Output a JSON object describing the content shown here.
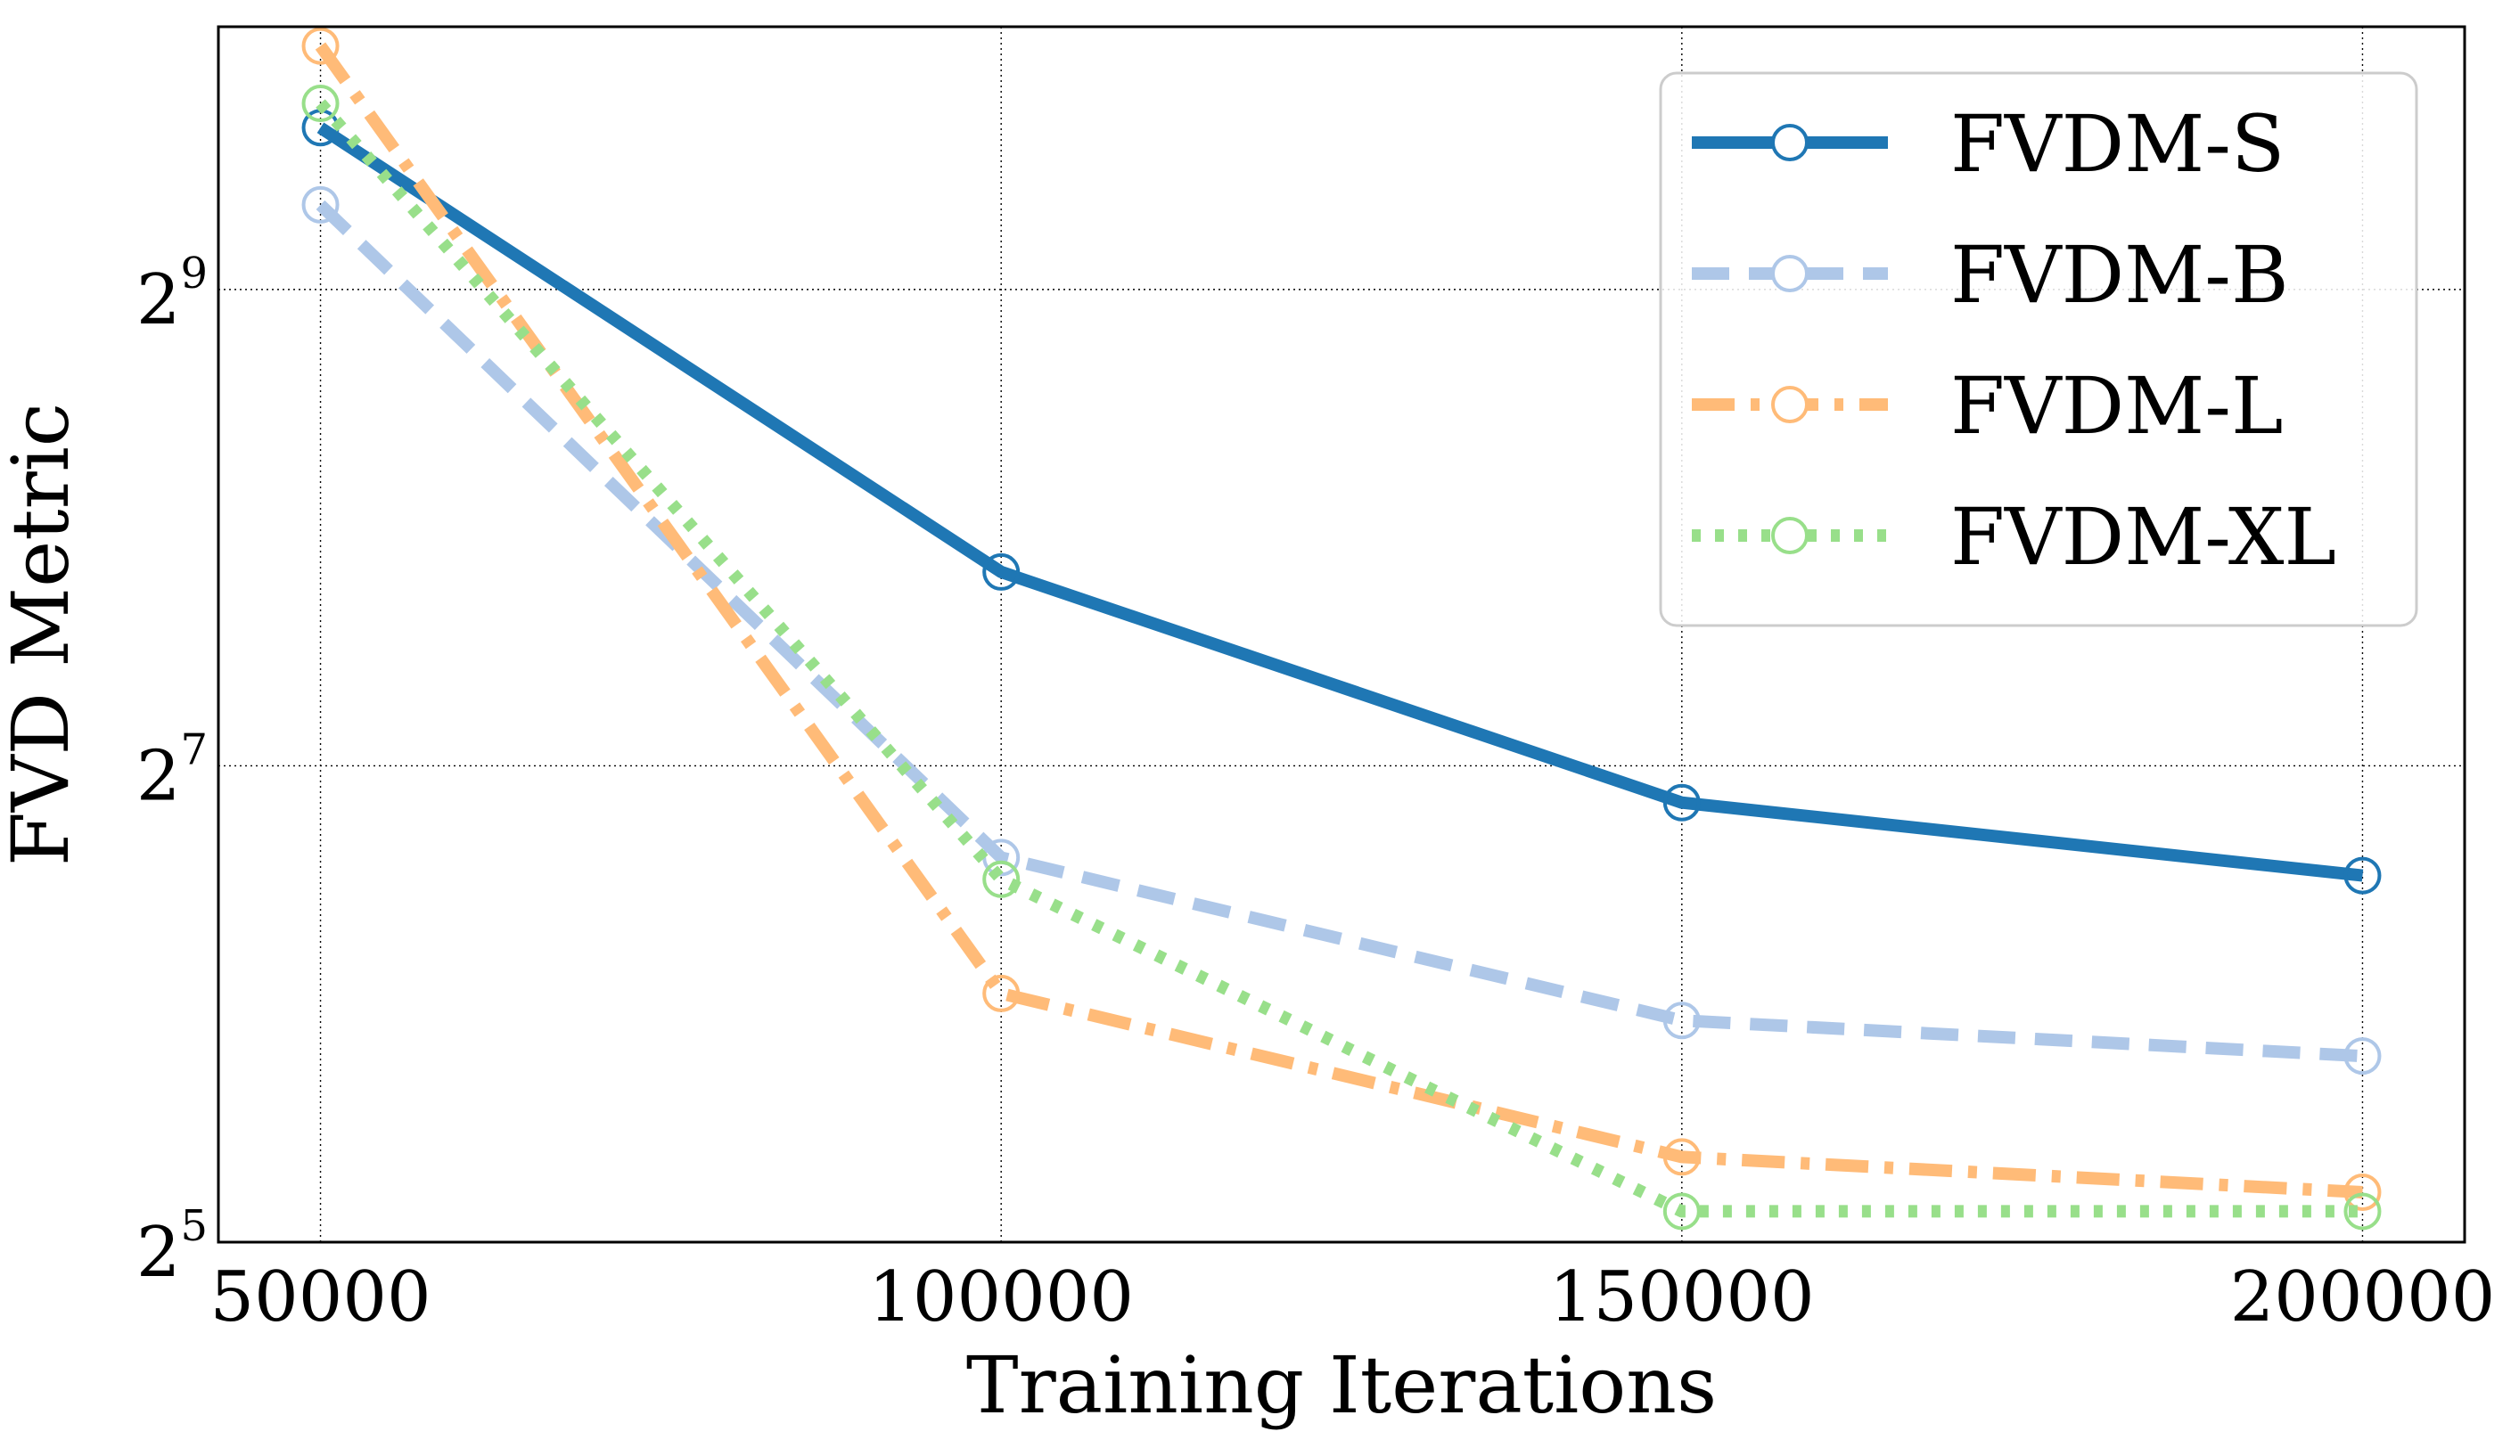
{
  "chart_data": {
    "type": "line",
    "title": "",
    "xlabel": "Training Iterations",
    "ylabel": "FVD Metric",
    "x": [
      50000,
      100000,
      150000,
      200000
    ],
    "xlim": [
      42500,
      207500
    ],
    "x_ticks": [
      50000,
      100000,
      150000,
      200000
    ],
    "y_scale": "log2",
    "ylim": [
      32,
      1100
    ],
    "y_ticks": [
      {
        "value": 32,
        "base": "2",
        "exponent": "5"
      },
      {
        "value": 128,
        "base": "2",
        "exponent": "7"
      },
      {
        "value": 512,
        "base": "2",
        "exponent": "9"
      }
    ],
    "grid": true,
    "legend_position": "top-right",
    "series": [
      {
        "name": "FVDM-S",
        "color": "#1f77b4",
        "linestyle": "solid",
        "values": [
          820,
          225,
          115,
          93
        ]
      },
      {
        "name": "FVDM-B",
        "color": "#aec7e8",
        "linestyle": "dashed",
        "values": [
          655,
          98,
          61,
          55
        ]
      },
      {
        "name": "FVDM-L",
        "color": "#ffbb78",
        "linestyle": "dashdot",
        "values": [
          1040,
          66,
          41,
          37
        ]
      },
      {
        "name": "FVDM-XL",
        "color": "#98df8a",
        "linestyle": "dotted",
        "values": [
          880,
          92,
          35,
          35
        ]
      }
    ]
  }
}
